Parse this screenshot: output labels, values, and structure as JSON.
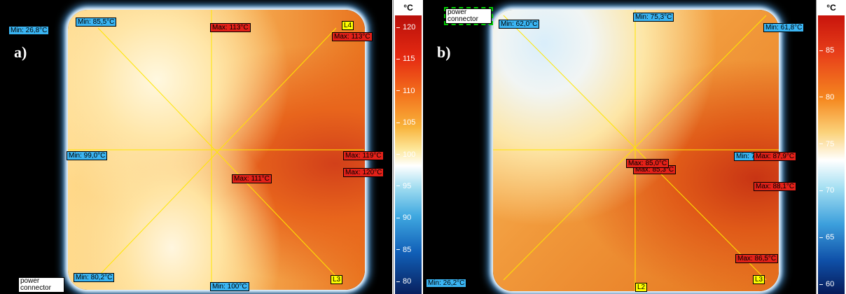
{
  "panels": [
    {
      "label": "a)",
      "colorbar": {
        "unit": "°C",
        "ticks": [
          120,
          115,
          110,
          105,
          100,
          95,
          90,
          85,
          80
        ]
      },
      "annotations": [
        "Min: 26,8°C",
        "Min: 85,5°C",
        "Max: 113°C",
        "L4",
        "Max: 113°C",
        "Min: 99,0°C",
        "Max: 119°C",
        "Max: 120°C",
        "Max: 111°C",
        "Min: 80,2°C",
        "Min: 100°C",
        "L3",
        "power connector"
      ]
    },
    {
      "label": "b)",
      "colorbar": {
        "unit": "°C",
        "ticks": [
          85,
          80,
          75,
          70,
          65,
          60
        ]
      },
      "annotations": [
        "power connector",
        "Min: 62,0°C",
        "Min: 75,3°C",
        "Min: 61,8°C",
        "Min: 7",
        "Max: 87,9°C",
        "Max: 85,3°C",
        "Max: 85,0°C",
        "Max: 88,1°C",
        "Max: 86,5°C",
        "Min: 26,2°C",
        "L2",
        "L3"
      ]
    }
  ]
}
